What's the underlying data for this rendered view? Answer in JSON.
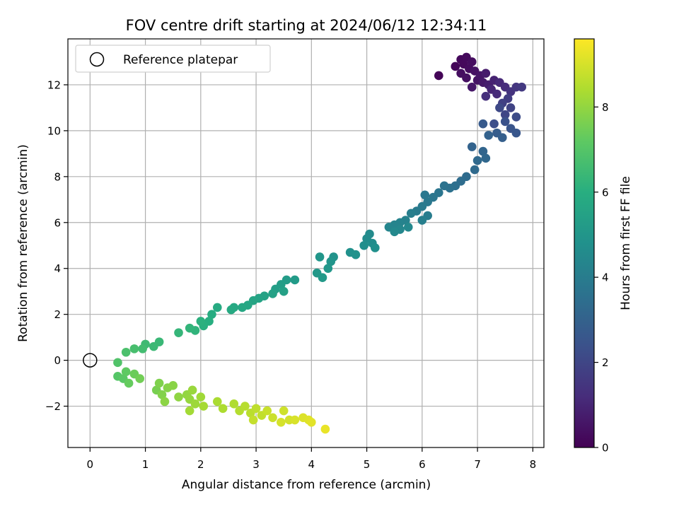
{
  "chart_data": {
    "type": "scatter",
    "title": "FOV centre drift starting at 2024/06/12 12:34:11",
    "xlabel": "Angular distance from reference (arcmin)",
    "ylabel": "Rotation from reference (arcmin)",
    "xlim": [
      -0.4,
      8.2
    ],
    "ylim": [
      -3.8,
      14.0
    ],
    "xticks": [
      0,
      1,
      2,
      3,
      4,
      5,
      6,
      7,
      8
    ],
    "yticks": [
      -2,
      0,
      2,
      4,
      6,
      8,
      10,
      12
    ],
    "ytick_labels": [
      "−2",
      "0",
      "2",
      "4",
      "6",
      "8",
      "10",
      "12"
    ],
    "grid": true,
    "legend": {
      "placement": "top-left",
      "entries": [
        "Reference platepar"
      ]
    },
    "reference_point": {
      "x": 0,
      "y": 0
    },
    "colorbar": {
      "label": "Hours from first FF file",
      "range": [
        0,
        9.6
      ],
      "ticks": [
        0,
        2,
        4,
        6,
        8
      ],
      "colormap": "viridis"
    },
    "series": [
      {
        "points": [
          [
            6.3,
            12.4,
            0.1
          ],
          [
            6.6,
            12.8,
            0.15
          ],
          [
            6.7,
            13.1,
            0.2
          ],
          [
            6.75,
            12.9,
            0.22
          ],
          [
            6.8,
            13.2,
            0.25
          ],
          [
            6.85,
            12.7,
            0.3
          ],
          [
            6.9,
            13.0,
            0.33
          ],
          [
            6.7,
            12.5,
            0.36
          ],
          [
            6.8,
            12.3,
            0.4
          ],
          [
            6.95,
            12.6,
            0.45
          ],
          [
            7.0,
            12.2,
            0.5
          ],
          [
            7.05,
            12.4,
            0.55
          ],
          [
            6.9,
            11.9,
            0.6
          ],
          [
            7.1,
            12.1,
            0.65
          ],
          [
            7.15,
            12.5,
            0.7
          ],
          [
            7.2,
            12.0,
            0.8
          ],
          [
            7.3,
            12.2,
            0.9
          ],
          [
            7.25,
            11.8,
            1.0
          ],
          [
            7.4,
            12.1,
            1.1
          ],
          [
            7.35,
            11.6,
            1.15
          ],
          [
            7.5,
            11.9,
            1.2
          ],
          [
            7.15,
            11.5,
            1.3
          ],
          [
            7.6,
            11.7,
            1.4
          ],
          [
            7.7,
            11.9,
            1.5
          ],
          [
            7.8,
            11.9,
            1.6
          ],
          [
            7.55,
            11.4,
            1.7
          ],
          [
            7.45,
            11.2,
            1.8
          ],
          [
            7.6,
            11.0,
            1.9
          ],
          [
            7.5,
            10.7,
            2.0
          ],
          [
            7.4,
            11.0,
            2.1
          ],
          [
            7.7,
            10.6,
            2.2
          ],
          [
            7.3,
            10.3,
            2.3
          ],
          [
            7.5,
            10.4,
            2.4
          ],
          [
            7.6,
            10.1,
            2.5
          ],
          [
            7.7,
            9.9,
            2.6
          ],
          [
            7.1,
            10.3,
            2.7
          ],
          [
            7.35,
            9.9,
            2.8
          ],
          [
            7.45,
            9.7,
            2.9
          ],
          [
            7.2,
            9.8,
            3.0
          ],
          [
            6.9,
            9.3,
            3.05
          ],
          [
            7.1,
            9.1,
            3.1
          ],
          [
            7.15,
            8.8,
            3.2
          ],
          [
            7.0,
            8.7,
            3.25
          ],
          [
            6.95,
            8.3,
            3.3
          ],
          [
            6.8,
            8.0,
            3.35
          ],
          [
            6.7,
            7.8,
            3.4
          ],
          [
            6.6,
            7.6,
            3.5
          ],
          [
            6.5,
            7.5,
            3.55
          ],
          [
            6.4,
            7.6,
            3.6
          ],
          [
            6.3,
            7.3,
            3.7
          ],
          [
            6.2,
            7.1,
            3.75
          ],
          [
            6.05,
            7.2,
            3.8
          ],
          [
            6.1,
            6.9,
            3.85
          ],
          [
            6.0,
            6.7,
            3.9
          ],
          [
            5.9,
            6.5,
            3.95
          ],
          [
            6.1,
            6.3,
            4.0
          ],
          [
            5.8,
            6.4,
            4.05
          ],
          [
            6.0,
            6.1,
            4.1
          ],
          [
            5.7,
            6.1,
            4.2
          ],
          [
            5.6,
            6.0,
            4.25
          ],
          [
            5.5,
            5.9,
            4.3
          ],
          [
            5.4,
            5.8,
            4.35
          ],
          [
            5.6,
            5.7,
            4.4
          ],
          [
            5.75,
            5.8,
            4.45
          ],
          [
            5.5,
            5.6,
            4.5
          ],
          [
            5.05,
            5.5,
            4.55
          ],
          [
            5.0,
            5.3,
            4.6
          ],
          [
            5.1,
            5.1,
            4.65
          ],
          [
            4.95,
            5.0,
            4.7
          ],
          [
            5.15,
            4.9,
            4.75
          ],
          [
            4.7,
            4.7,
            4.8
          ],
          [
            4.8,
            4.6,
            4.85
          ],
          [
            4.4,
            4.5,
            4.9
          ],
          [
            4.35,
            4.3,
            4.95
          ],
          [
            4.15,
            4.5,
            5.0
          ],
          [
            4.3,
            4.0,
            5.05
          ],
          [
            4.1,
            3.8,
            5.1
          ],
          [
            4.2,
            3.6,
            5.15
          ],
          [
            3.7,
            3.5,
            5.2
          ],
          [
            3.55,
            3.5,
            5.25
          ],
          [
            3.45,
            3.3,
            5.3
          ],
          [
            3.35,
            3.1,
            5.35
          ],
          [
            3.5,
            3.0,
            5.4
          ],
          [
            3.3,
            2.9,
            5.45
          ],
          [
            3.15,
            2.8,
            5.5
          ],
          [
            3.05,
            2.7,
            5.55
          ],
          [
            2.95,
            2.6,
            5.6
          ],
          [
            2.85,
            2.4,
            5.65
          ],
          [
            2.75,
            2.3,
            5.7
          ],
          [
            2.6,
            2.3,
            5.75
          ],
          [
            2.55,
            2.2,
            5.8
          ],
          [
            2.3,
            2.3,
            5.85
          ],
          [
            2.2,
            2.0,
            5.9
          ],
          [
            2.15,
            1.7,
            6.0
          ],
          [
            2.05,
            1.5,
            6.05
          ],
          [
            2.0,
            1.7,
            6.1
          ],
          [
            1.9,
            1.3,
            6.2
          ],
          [
            1.8,
            1.4,
            6.25
          ],
          [
            1.6,
            1.2,
            6.3
          ],
          [
            1.25,
            0.8,
            6.4
          ],
          [
            1.15,
            0.6,
            6.45
          ],
          [
            1.0,
            0.7,
            6.5
          ],
          [
            0.95,
            0.5,
            6.6
          ],
          [
            0.8,
            0.5,
            6.7
          ],
          [
            0.65,
            0.35,
            6.8
          ],
          [
            0.5,
            -0.1,
            6.9
          ],
          [
            0.5,
            -0.7,
            7.0
          ],
          [
            0.6,
            -0.8,
            7.1
          ],
          [
            0.65,
            -0.5,
            7.2
          ],
          [
            0.7,
            -1.0,
            7.3
          ],
          [
            0.8,
            -0.6,
            7.4
          ],
          [
            0.9,
            -0.8,
            7.5
          ],
          [
            1.2,
            -1.3,
            7.6
          ],
          [
            1.25,
            -1.0,
            7.7
          ],
          [
            1.3,
            -1.5,
            7.75
          ],
          [
            1.4,
            -1.2,
            7.8
          ],
          [
            1.5,
            -1.1,
            7.85
          ],
          [
            1.35,
            -1.8,
            7.9
          ],
          [
            1.6,
            -1.6,
            7.95
          ],
          [
            1.75,
            -1.5,
            8.0
          ],
          [
            1.8,
            -1.7,
            8.05
          ],
          [
            1.85,
            -1.3,
            8.1
          ],
          [
            1.9,
            -1.9,
            8.15
          ],
          [
            2.0,
            -1.6,
            8.2
          ],
          [
            1.8,
            -2.2,
            8.25
          ],
          [
            2.05,
            -2.0,
            8.3
          ],
          [
            2.3,
            -1.8,
            8.35
          ],
          [
            2.4,
            -2.1,
            8.4
          ],
          [
            2.6,
            -1.9,
            8.45
          ],
          [
            2.7,
            -2.2,
            8.5
          ],
          [
            2.8,
            -2.0,
            8.55
          ],
          [
            2.9,
            -2.3,
            8.6
          ],
          [
            3.0,
            -2.1,
            8.65
          ],
          [
            3.1,
            -2.4,
            8.7
          ],
          [
            2.95,
            -2.6,
            8.75
          ],
          [
            3.2,
            -2.2,
            8.8
          ],
          [
            3.3,
            -2.5,
            8.85
          ],
          [
            3.5,
            -2.2,
            8.9
          ],
          [
            3.6,
            -2.6,
            8.95
          ],
          [
            3.45,
            -2.7,
            9.0
          ],
          [
            3.7,
            -2.6,
            9.05
          ],
          [
            3.85,
            -2.5,
            9.1
          ],
          [
            3.95,
            -2.6,
            9.15
          ],
          [
            4.0,
            -2.7,
            9.2
          ],
          [
            4.25,
            -3.0,
            9.3
          ]
        ]
      }
    ]
  }
}
